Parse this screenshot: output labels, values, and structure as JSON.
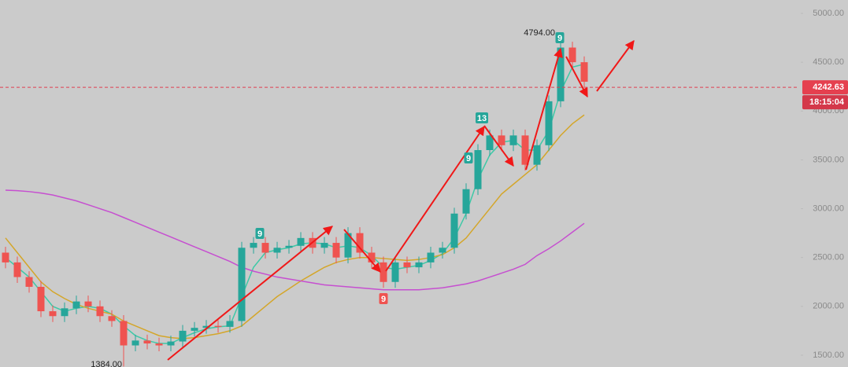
{
  "chart_data": {
    "type": "candlestick",
    "up_color": "#26a69a",
    "down_color": "#ef5350",
    "ylim": [
      1379,
      5137
    ],
    "yticks": [
      {
        "value": 1500,
        "label": "1500.00"
      },
      {
        "value": 2000,
        "label": "2000.00"
      },
      {
        "value": 2500,
        "label": "2500.00"
      },
      {
        "value": 3000,
        "label": "3000.00"
      },
      {
        "value": 3500,
        "label": "3500.00"
      },
      {
        "value": 4000,
        "label": "4000.00"
      },
      {
        "value": 4500,
        "label": "4500.00"
      },
      {
        "value": 5000,
        "label": "5000.00"
      }
    ],
    "open": [
      2550,
      2450,
      2300,
      2200,
      1950,
      1900,
      1980,
      2050,
      2000,
      1900,
      1850,
      1600,
      1650,
      1620,
      1600,
      1640,
      1750,
      1780,
      1800,
      1790,
      1850,
      2600,
      2650,
      2550,
      2600,
      2620,
      2700,
      2600,
      2650,
      2500,
      2750,
      2550,
      2450,
      2250,
      2450,
      2400,
      2450,
      2550,
      2600,
      2950,
      3200,
      3600,
      3750,
      3650,
      3750,
      3450,
      3650,
      4100,
      4650,
      4500
    ],
    "high": [
      2610,
      2510,
      2360,
      2260,
      2010,
      2040,
      2110,
      2110,
      2060,
      1960,
      1910,
      1710,
      1710,
      1680,
      1700,
      1810,
      1840,
      1860,
      1860,
      1910,
      2660,
      2710,
      2710,
      2660,
      2680,
      2760,
      2760,
      2710,
      2710,
      2810,
      2810,
      2610,
      2510,
      2510,
      2510,
      2510,
      2610,
      2660,
      3010,
      3260,
      3660,
      3810,
      3810,
      3810,
      3810,
      3710,
      4160,
      4794,
      4710,
      4560
    ],
    "low": [
      2390,
      2240,
      2140,
      1890,
      1840,
      1840,
      1920,
      1940,
      1840,
      1790,
      1384,
      1540,
      1560,
      1540,
      1540,
      1580,
      1690,
      1720,
      1730,
      1730,
      1790,
      2540,
      2490,
      2490,
      2540,
      2560,
      2540,
      2540,
      2440,
      2440,
      2490,
      2390,
      2190,
      2190,
      2340,
      2340,
      2390,
      2490,
      2540,
      2890,
      3140,
      3540,
      3590,
      3590,
      3390,
      3390,
      3590,
      4040,
      4440,
      4240
    ],
    "close": [
      2450,
      2300,
      2200,
      1950,
      1900,
      1980,
      2050,
      2000,
      1900,
      1850,
      1600,
      1650,
      1620,
      1600,
      1640,
      1750,
      1780,
      1800,
      1790,
      1850,
      2600,
      2650,
      2550,
      2600,
      2620,
      2700,
      2600,
      2650,
      2500,
      2750,
      2550,
      2450,
      2250,
      2450,
      2400,
      2450,
      2550,
      2600,
      2950,
      3200,
      3600,
      3750,
      3650,
      3750,
      3450,
      3650,
      4100,
      4650,
      4500,
      4300
    ],
    "series": [
      {
        "color": "#3ec9a7",
        "values": [
          2500,
          2400,
          2300,
          2150,
          2000,
          1950,
          1980,
          2000,
          1980,
          1920,
          1800,
          1700,
          1650,
          1620,
          1620,
          1680,
          1730,
          1770,
          1790,
          1800,
          2100,
          2400,
          2550,
          2580,
          2600,
          2640,
          2650,
          2640,
          2600,
          2620,
          2600,
          2520,
          2400,
          2380,
          2400,
          2420,
          2470,
          2540,
          2700,
          2950,
          3300,
          3550,
          3680,
          3700,
          3600,
          3600,
          3800,
          4200,
          4450,
          4480
        ]
      },
      {
        "color": "#d4a62a",
        "values": [
          2700,
          2550,
          2400,
          2250,
          2150,
          2080,
          2020,
          1980,
          1950,
          1920,
          1850,
          1800,
          1750,
          1700,
          1680,
          1670,
          1680,
          1700,
          1720,
          1750,
          1800,
          1900,
          2000,
          2100,
          2180,
          2260,
          2330,
          2400,
          2450,
          2480,
          2500,
          2500,
          2490,
          2480,
          2470,
          2480,
          2500,
          2530,
          2600,
          2700,
          2850,
          3000,
          3150,
          3250,
          3350,
          3450,
          3600,
          3750,
          3870,
          3960
        ]
      },
      {
        "color": "#c64fd0",
        "values": [
          3190,
          3185,
          3175,
          3160,
          3140,
          3110,
          3080,
          3040,
          3000,
          2960,
          2910,
          2860,
          2810,
          2760,
          2710,
          2660,
          2610,
          2560,
          2510,
          2460,
          2400,
          2360,
          2330,
          2300,
          2280,
          2260,
          2240,
          2220,
          2210,
          2200,
          2190,
          2180,
          2170,
          2170,
          2170,
          2170,
          2180,
          2190,
          2210,
          2230,
          2260,
          2300,
          2340,
          2380,
          2430,
          2520,
          2590,
          2670,
          2760,
          2850
        ]
      }
    ],
    "current_price": 4242.63,
    "countdown": "18:15:04",
    "annotations": [
      "4794.00",
      "1384.00"
    ],
    "signals": [
      {
        "text": "9",
        "color": "#26a69a"
      },
      {
        "text": "9",
        "color": "#ef5350"
      },
      {
        "text": "13",
        "color": "#26a69a"
      },
      {
        "text": "9",
        "color": "#26a69a"
      },
      {
        "text": "9",
        "color": "#26a69a"
      }
    ]
  }
}
